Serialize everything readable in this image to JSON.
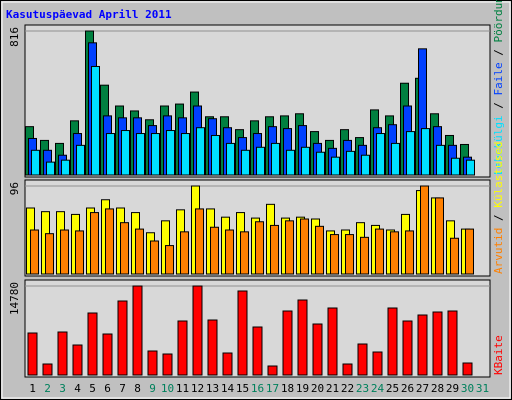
{
  "legend_separator": " / ",
  "day_color": "#000000",
  "weekend_color": "#00805c",
  "weekend_days": [
    2,
    3,
    9,
    10,
    16,
    17,
    23,
    24,
    30,
    31
  ],
  "chart_data": [
    {
      "type": "bar",
      "title": "Kasutuspäevad Aprill 2011",
      "ylim": [
        0,
        816
      ],
      "yticks": [
        816
      ],
      "series": [
        {
          "name": "Pöördumisi",
          "color": "#008040",
          "values": [
            274,
            196,
            179,
            307,
            816,
            509,
            391,
            363,
            313,
            391,
            402,
            470,
            330,
            330,
            257,
            307,
            330,
            335,
            347,
            246,
            196,
            257,
            212,
            369,
            335,
            520,
            548,
            347,
            224,
            173,
            0
          ]
        },
        {
          "name": "Faile",
          "color": "#0040ff",
          "values": [
            207,
            140,
            112,
            235,
            749,
            335,
            324,
            324,
            280,
            335,
            324,
            391,
            319,
            268,
            212,
            235,
            274,
            263,
            280,
            179,
            151,
            196,
            168,
            268,
            285,
            391,
            715,
            274,
            168,
            101,
            0
          ]
        },
        {
          "name": "Lehekülgi",
          "color": "#00e0ff",
          "values": [
            140,
            73,
            84,
            168,
            615,
            235,
            252,
            235,
            235,
            252,
            235,
            268,
            224,
            179,
            140,
            157,
            179,
            140,
            157,
            129,
            101,
            134,
            112,
            235,
            179,
            246,
            263,
            168,
            95,
            84,
            0
          ]
        }
      ]
    },
    {
      "type": "bar",
      "ylim": [
        0,
        96
      ],
      "yticks": [
        96
      ],
      "series": [
        {
          "name": "Külastused",
          "color": "#ffff00",
          "values": [
            72,
            68,
            68,
            65,
            72,
            81,
            72,
            67,
            45,
            58,
            70,
            96,
            71,
            62,
            67,
            61,
            76,
            61,
            62,
            60,
            47,
            48,
            56,
            53,
            48,
            65,
            91,
            83,
            58,
            49,
            0
          ]
        },
        {
          "name": "Arvutid",
          "color": "#ff8000",
          "values": [
            48,
            44,
            48,
            47,
            67,
            71,
            56,
            49,
            36,
            31,
            46,
            71,
            51,
            48,
            46,
            57,
            53,
            58,
            60,
            52,
            43,
            43,
            40,
            49,
            46,
            47,
            96,
            83,
            39,
            49,
            0
          ]
        }
      ]
    },
    {
      "type": "bar",
      "ylim": [
        0,
        14780
      ],
      "yticks": [
        14780
      ],
      "categories": [
        1,
        2,
        3,
        4,
        5,
        6,
        7,
        8,
        9,
        10,
        11,
        12,
        13,
        14,
        15,
        16,
        17,
        18,
        19,
        20,
        21,
        22,
        23,
        24,
        25,
        26,
        27,
        28,
        29,
        30,
        31
      ],
      "series": [
        {
          "name": "KBaite",
          "color": "#ff0000",
          "values": [
            6975,
            1827,
            7141,
            4982,
            10296,
            6808,
            12289,
            14780,
            3986,
            3487,
            8968,
            14780,
            9134,
            3653,
            13950,
            7971,
            1494,
            10628,
            12455,
            8469,
            11126,
            1827,
            5148,
            3819,
            11126,
            8968,
            9964,
            10462,
            10628,
            1993,
            0
          ]
        }
      ]
    }
  ]
}
